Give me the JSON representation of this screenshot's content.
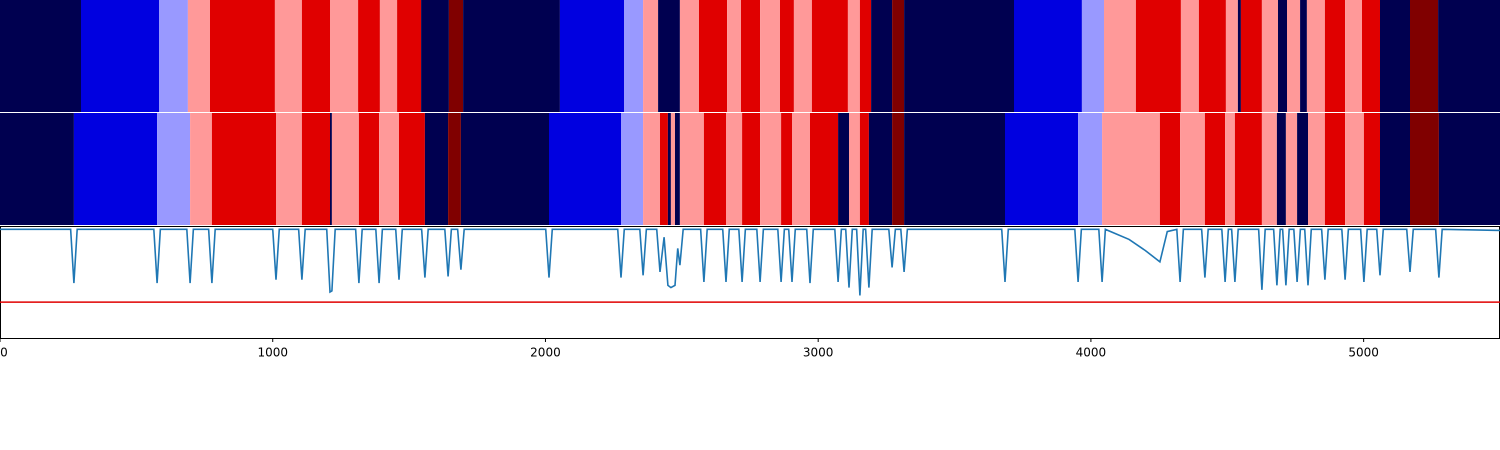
{
  "chart_data": [
    {
      "type": "heatstrip",
      "xlim": [
        0,
        5500
      ],
      "palette": [
        "#000050",
        "#0000e0",
        "#9999ff",
        "#ff9999",
        "#e00000",
        "#800000"
      ],
      "rows": [
        {
          "breaks": [
            0,
            297,
            583,
            689,
            770,
            1008,
            1107,
            1210,
            1313,
            1393,
            1456,
            1544,
            1646,
            1698,
            2053,
            2288,
            2358,
            2413,
            2493,
            2563,
            2666,
            2717,
            2787,
            2860,
            2911,
            2977,
            3109,
            3153,
            3194,
            3271,
            3315,
            3718,
            3967,
            4048,
            4165,
            4330,
            4396,
            4495,
            4539,
            4550,
            4627,
            4686,
            4719,
            4767,
            4792,
            4858,
            4932,
            4994,
            5060,
            5170,
            5273,
            5500
          ],
          "levels": [
            0,
            1,
            2,
            3,
            4,
            3,
            4,
            3,
            4,
            3,
            4,
            0,
            5,
            0,
            1,
            2,
            3,
            0,
            3,
            4,
            3,
            4,
            3,
            4,
            3,
            4,
            3,
            4,
            0,
            5,
            0,
            1,
            2,
            3,
            4,
            3,
            4,
            3,
            0,
            4,
            3,
            0,
            3,
            0,
            3,
            4,
            3,
            4,
            0,
            5,
            0
          ]
        },
        {
          "breaks": [
            0,
            271,
            576,
            697,
            777,
            1012,
            1107,
            1210,
            1217,
            1316,
            1390,
            1463,
            1558,
            1643,
            1690,
            2013,
            2277,
            2358,
            2420,
            2449,
            2460,
            2475,
            2493,
            2581,
            2662,
            2721,
            2787,
            2864,
            2904,
            2970,
            3073,
            3113,
            3153,
            3186,
            3271,
            3315,
            3685,
            3953,
            4041,
            4253,
            4327,
            4418,
            4492,
            4528,
            4627,
            4682,
            4715,
            4756,
            4796,
            4858,
            4932,
            5001,
            5060,
            5170,
            5276,
            5500
          ],
          "levels": [
            0,
            1,
            2,
            3,
            4,
            3,
            4,
            0,
            3,
            4,
            3,
            4,
            0,
            5,
            0,
            1,
            2,
            3,
            4,
            0,
            3,
            0,
            3,
            4,
            3,
            4,
            3,
            4,
            3,
            4,
            0,
            3,
            4,
            0,
            5,
            0,
            1,
            2,
            3,
            4,
            3,
            4,
            3,
            4,
            3,
            0,
            3,
            0,
            3,
            4,
            3,
            4,
            0,
            5,
            0
          ]
        }
      ]
    },
    {
      "type": "line",
      "xlim": [
        0,
        5500
      ],
      "ylim": [
        0,
        1
      ],
      "color": "#1f77b4",
      "xticks": [
        0,
        1000,
        2000,
        3000,
        4000,
        5000
      ],
      "hline": 0.32,
      "hline_color": "#e00000",
      "x": [
        0,
        259,
        271,
        283,
        564,
        576,
        588,
        685,
        697,
        709,
        765,
        777,
        789,
        1000,
        1012,
        1024,
        1095,
        1107,
        1119,
        1198,
        1210,
        1217,
        1229,
        1304,
        1316,
        1328,
        1378,
        1390,
        1402,
        1451,
        1463,
        1475,
        1546,
        1558,
        1570,
        1631,
        1643,
        1655,
        1678,
        1690,
        1702,
        2001,
        2013,
        2025,
        2265,
        2277,
        2289,
        2346,
        2358,
        2370,
        2408,
        2420,
        2435,
        2449,
        2460,
        2475,
        2485,
        2493,
        2505,
        2569,
        2581,
        2593,
        2650,
        2662,
        2674,
        2709,
        2721,
        2733,
        2775,
        2787,
        2799,
        2852,
        2864,
        2876,
        2892,
        2904,
        2916,
        2958,
        2970,
        2982,
        3061,
        3073,
        3085,
        3101,
        3113,
        3125,
        3141,
        3153,
        3165,
        3174,
        3186,
        3198,
        3259,
        3271,
        3283,
        3303,
        3315,
        3327,
        3673,
        3685,
        3697,
        3941,
        3953,
        3965,
        4029,
        4041,
        4053,
        4140,
        4200,
        4253,
        4280,
        4315,
        4327,
        4339,
        4406,
        4418,
        4430,
        4480,
        4492,
        4504,
        4516,
        4528,
        4540,
        4615,
        4627,
        4639,
        4670,
        4682,
        4694,
        4703,
        4715,
        4727,
        4744,
        4756,
        4768,
        4784,
        4796,
        4808,
        4846,
        4858,
        4870,
        4920,
        4932,
        4944,
        4989,
        5001,
        5013,
        5048,
        5060,
        5072,
        5158,
        5170,
        5182,
        5264,
        5276,
        5288,
        5500
      ],
      "values": [
        0.97,
        0.97,
        0.49,
        0.97,
        0.97,
        0.49,
        0.97,
        0.97,
        0.49,
        0.97,
        0.97,
        0.49,
        0.97,
        0.97,
        0.52,
        0.97,
        0.97,
        0.52,
        0.97,
        0.97,
        0.41,
        0.42,
        0.97,
        0.97,
        0.49,
        0.97,
        0.97,
        0.49,
        0.97,
        0.97,
        0.52,
        0.97,
        0.97,
        0.54,
        0.97,
        0.97,
        0.55,
        0.97,
        0.97,
        0.61,
        0.97,
        0.97,
        0.54,
        0.97,
        0.97,
        0.54,
        0.97,
        0.97,
        0.56,
        0.97,
        0.97,
        0.59,
        0.9,
        0.47,
        0.45,
        0.47,
        0.8,
        0.65,
        0.97,
        0.97,
        0.5,
        0.97,
        0.97,
        0.5,
        0.97,
        0.97,
        0.5,
        0.97,
        0.97,
        0.5,
        0.97,
        0.97,
        0.5,
        0.97,
        0.97,
        0.5,
        0.97,
        0.97,
        0.49,
        0.97,
        0.97,
        0.5,
        0.97,
        0.97,
        0.45,
        0.97,
        0.97,
        0.38,
        0.97,
        0.97,
        0.45,
        0.97,
        0.97,
        0.63,
        0.97,
        0.97,
        0.59,
        0.97,
        0.97,
        0.5,
        0.97,
        0.97,
        0.5,
        0.97,
        0.97,
        0.5,
        0.97,
        0.88,
        0.78,
        0.68,
        0.95,
        0.97,
        0.5,
        0.97,
        0.97,
        0.54,
        0.97,
        0.97,
        0.5,
        0.97,
        0.97,
        0.5,
        0.97,
        0.97,
        0.43,
        0.97,
        0.97,
        0.47,
        0.97,
        0.97,
        0.47,
        0.97,
        0.97,
        0.5,
        0.97,
        0.97,
        0.47,
        0.97,
        0.97,
        0.52,
        0.97,
        0.97,
        0.52,
        0.97,
        0.97,
        0.5,
        0.97,
        0.97,
        0.56,
        0.97,
        0.97,
        0.59,
        0.97,
        0.97,
        0.54,
        0.97,
        0.96
      ]
    }
  ]
}
